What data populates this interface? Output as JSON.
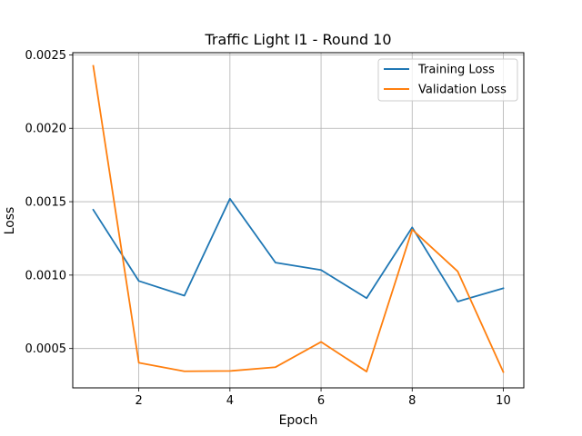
{
  "chart_data": {
    "type": "line",
    "title": "Traffic Light I1 - Round 10",
    "xlabel": "Epoch",
    "ylabel": "Loss",
    "x": [
      1,
      2,
      3,
      4,
      5,
      6,
      7,
      8,
      9,
      10
    ],
    "xticks": [
      2,
      4,
      6,
      8,
      10
    ],
    "xlim": [
      0.55,
      10.45
    ],
    "yticks": [
      0.0005,
      0.001,
      0.0015,
      0.002,
      0.0025
    ],
    "ytick_labels": [
      "0.0005",
      "0.0010",
      "0.0015",
      "0.0020",
      "0.0025"
    ],
    "ylim": [
      0.000232,
      0.002515
    ],
    "grid": true,
    "legend_position": "top-right",
    "series": [
      {
        "name": "Training Loss",
        "color": "#1f77b4",
        "values": [
          0.001445,
          0.00096,
          0.00086,
          0.00152,
          0.001085,
          0.001035,
          0.000843,
          0.001325,
          0.00082,
          0.00091
        ]
      },
      {
        "name": "Validation Loss",
        "color": "#ff7f0e",
        "values": [
          0.002425,
          0.000403,
          0.000345,
          0.000347,
          0.000373,
          0.000545,
          0.000343,
          0.00131,
          0.001025,
          0.00034
        ]
      }
    ]
  }
}
